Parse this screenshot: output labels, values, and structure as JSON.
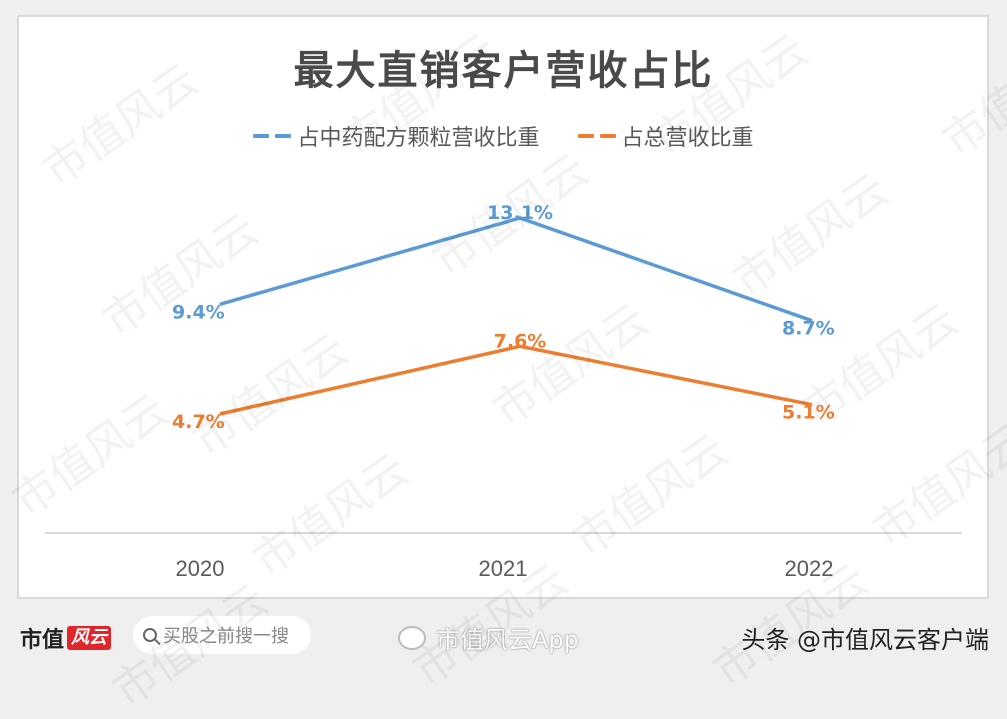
{
  "chart_data": {
    "type": "line",
    "title": "最大直销客户营收占比",
    "categories": [
      "2020",
      "2021",
      "2022"
    ],
    "series": [
      {
        "name": "占中药配方颗粒营收比重",
        "color": "#5b9bd5",
        "values": [
          9.4,
          13.1,
          8.7
        ],
        "labels": [
          "9.4%",
          "13.1%",
          "8.7%"
        ]
      },
      {
        "name": "占总营收比重",
        "color": "#ed7d31",
        "values": [
          4.7,
          7.6,
          5.1
        ],
        "labels": [
          "4.7%",
          "7.6%",
          "5.1%"
        ]
      }
    ],
    "xlabel": "",
    "ylabel": "",
    "unit": "%",
    "grid": false,
    "legend_position": "top"
  },
  "footer": {
    "brand_left": "市值",
    "brand_right": "风云",
    "search_placeholder": "买股之前搜一搜",
    "weibo_text": "市值风云App",
    "toutiao_text": "头条 @市值风云客户端"
  },
  "watermark_text": "市值风云"
}
